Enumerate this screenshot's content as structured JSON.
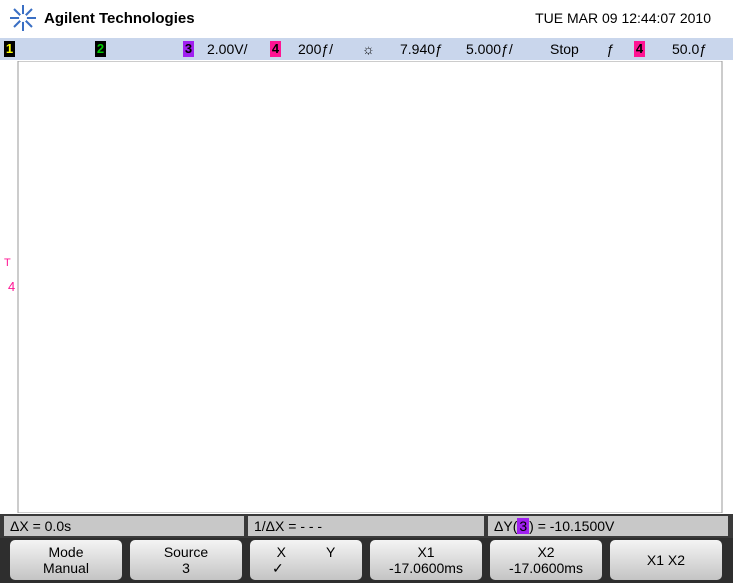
{
  "header": {
    "brand": "Agilent Technologies",
    "datetime": "TUE MAR 09 12:44:07 2010"
  },
  "status_bar": {
    "channels": [
      "1",
      "2",
      "3",
      "4"
    ],
    "ch3_scale": "2.00V/",
    "ch4_scale": "200ƒ/",
    "delay": "7.940ƒ",
    "time_per_div": "5.000ƒ/",
    "run_state": "Stop",
    "trigger_slope": "ƒ",
    "trigger_source": "4",
    "trigger_level": "50.0ƒ"
  },
  "display": {
    "markers": [
      "T",
      "4"
    ]
  },
  "measurements": {
    "delta_x": "ΔX = 0.0s",
    "inv_delta_x": "1/ΔX = - - -",
    "delta_y_prefix": "ΔY(",
    "delta_y_source": "3",
    "delta_y_suffix": ") = -10.1500V"
  },
  "softkeys": [
    {
      "label": "Mode",
      "value": "Manual"
    },
    {
      "label": "Source",
      "value": "3"
    },
    {
      "label": "X",
      "label2": "Y",
      "value": "✓"
    },
    {
      "label": "X1",
      "value": "-17.0600ms"
    },
    {
      "label": "X2",
      "value": "-17.0600ms"
    },
    {
      "label": "X1 X2"
    }
  ]
}
